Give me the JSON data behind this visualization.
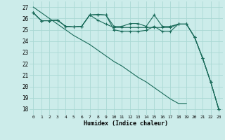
{
  "xlabel": "Humidex (Indice chaleur)",
  "bg_color": "#ccecea",
  "grid_color": "#aad8d4",
  "line_color": "#1a6b5a",
  "xlim": [
    -0.5,
    23.5
  ],
  "ylim": [
    17.5,
    27.5
  ],
  "yticks": [
    18,
    19,
    20,
    21,
    22,
    23,
    24,
    25,
    26,
    27
  ],
  "x_ticks": [
    0,
    1,
    2,
    3,
    4,
    5,
    6,
    7,
    8,
    9,
    10,
    11,
    12,
    13,
    14,
    15,
    16,
    17,
    18,
    19,
    20,
    21,
    22,
    23
  ],
  "series_with_markers": [
    [
      26.5,
      25.8,
      25.8,
      25.85,
      25.3,
      25.25,
      25.3,
      26.3,
      26.35,
      26.3,
      25.0,
      24.85,
      24.85,
      24.85,
      24.95,
      25.3,
      24.85,
      24.85,
      25.5,
      25.5,
      24.35,
      22.5,
      20.4,
      18.0
    ],
    [
      26.5,
      25.8,
      25.8,
      25.85,
      25.3,
      25.25,
      25.3,
      26.3,
      26.35,
      26.3,
      25.3,
      25.3,
      25.55,
      25.55,
      25.3,
      26.3,
      25.3,
      25.3,
      25.5,
      25.5,
      24.35,
      22.5,
      20.4,
      18.0
    ],
    [
      26.5,
      25.8,
      25.8,
      25.85,
      25.3,
      25.25,
      25.3,
      26.3,
      25.85,
      25.5,
      25.2,
      25.2,
      25.2,
      25.2,
      25.2,
      25.2,
      25.2,
      25.2,
      25.5,
      25.5,
      24.35,
      22.5,
      20.4,
      18.0
    ]
  ],
  "diagonal_line": [
    27.0,
    26.5,
    26.0,
    25.5,
    25.0,
    24.5,
    24.1,
    23.7,
    23.2,
    22.7,
    22.2,
    21.8,
    21.3,
    20.8,
    20.4,
    19.9,
    19.4,
    18.9,
    18.5,
    18.5,
    24.35,
    22.5,
    20.4,
    18.0
  ],
  "marker": "+",
  "markersize": 3.5,
  "linewidth": 0.8
}
